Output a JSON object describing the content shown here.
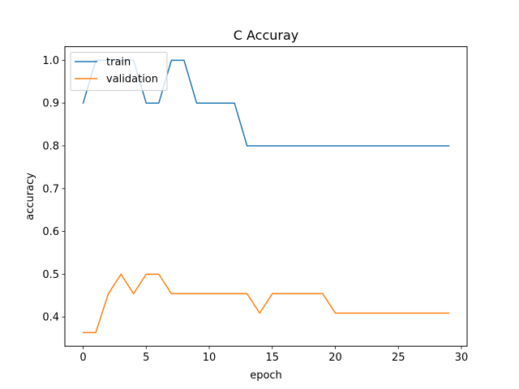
{
  "chart_data": {
    "type": "line",
    "title": "C Accuray",
    "xlabel": "epoch",
    "ylabel": "accuracy",
    "xlim": [
      -1.45,
      30.45
    ],
    "ylim": [
      0.3318,
      1.0318
    ],
    "xticks": [
      0,
      5,
      10,
      15,
      20,
      25,
      30
    ],
    "yticks": [
      0.4,
      0.5,
      0.6,
      0.7,
      0.8,
      0.9,
      1.0
    ],
    "xtick_labels": [
      "0",
      "5",
      "10",
      "15",
      "20",
      "25",
      "30"
    ],
    "ytick_labels": [
      "0.4",
      "0.5",
      "0.6",
      "0.7",
      "0.8",
      "0.9",
      "1.0"
    ],
    "grid": false,
    "legend": "upper left",
    "x": [
      0,
      1,
      2,
      3,
      4,
      5,
      6,
      7,
      8,
      9,
      10,
      11,
      12,
      13,
      14,
      15,
      16,
      17,
      18,
      19,
      20,
      21,
      22,
      23,
      24,
      25,
      26,
      27,
      28,
      29
    ],
    "series": [
      {
        "name": "train",
        "color": "#1f77b4",
        "values": [
          0.9,
          1.0,
          1.0,
          1.0,
          1.0,
          0.9,
          0.9,
          1.0,
          1.0,
          0.9,
          0.9,
          0.9,
          0.9,
          0.8,
          0.8,
          0.8,
          0.8,
          0.8,
          0.8,
          0.8,
          0.8,
          0.8,
          0.8,
          0.8,
          0.8,
          0.8,
          0.8,
          0.8,
          0.8,
          0.8
        ]
      },
      {
        "name": "validation",
        "color": "#ff7f0e",
        "values": [
          0.3636,
          0.3636,
          0.4545,
          0.5,
          0.4545,
          0.5,
          0.5,
          0.4545,
          0.4545,
          0.4545,
          0.4545,
          0.4545,
          0.4545,
          0.4545,
          0.4091,
          0.4545,
          0.4545,
          0.4545,
          0.4545,
          0.4545,
          0.4091,
          0.4091,
          0.4091,
          0.4091,
          0.4091,
          0.4091,
          0.4091,
          0.4091,
          0.4091,
          0.4091
        ]
      }
    ]
  }
}
